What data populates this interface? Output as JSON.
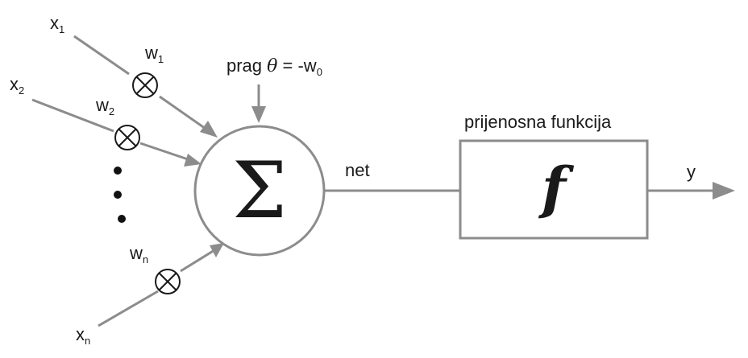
{
  "inputs": [
    {
      "label": "x",
      "sub": "1",
      "weight": "w",
      "weight_sub": "1"
    },
    {
      "label": "x",
      "sub": "2",
      "weight": "w",
      "weight_sub": "2"
    },
    {
      "label": "x",
      "sub": "n",
      "weight": "w",
      "weight_sub": "n"
    }
  ],
  "threshold": {
    "text_prag": "prag ",
    "theta": "θ",
    "text_eq": " = -w",
    "sub": "0"
  },
  "summation": {
    "symbol": "Σ"
  },
  "net_label": "net",
  "transfer": {
    "title": "prijenosna funkcija",
    "symbol": "f"
  },
  "output_label": "y",
  "colors": {
    "line": "#8c8c8c",
    "text": "#1a1a1a"
  }
}
